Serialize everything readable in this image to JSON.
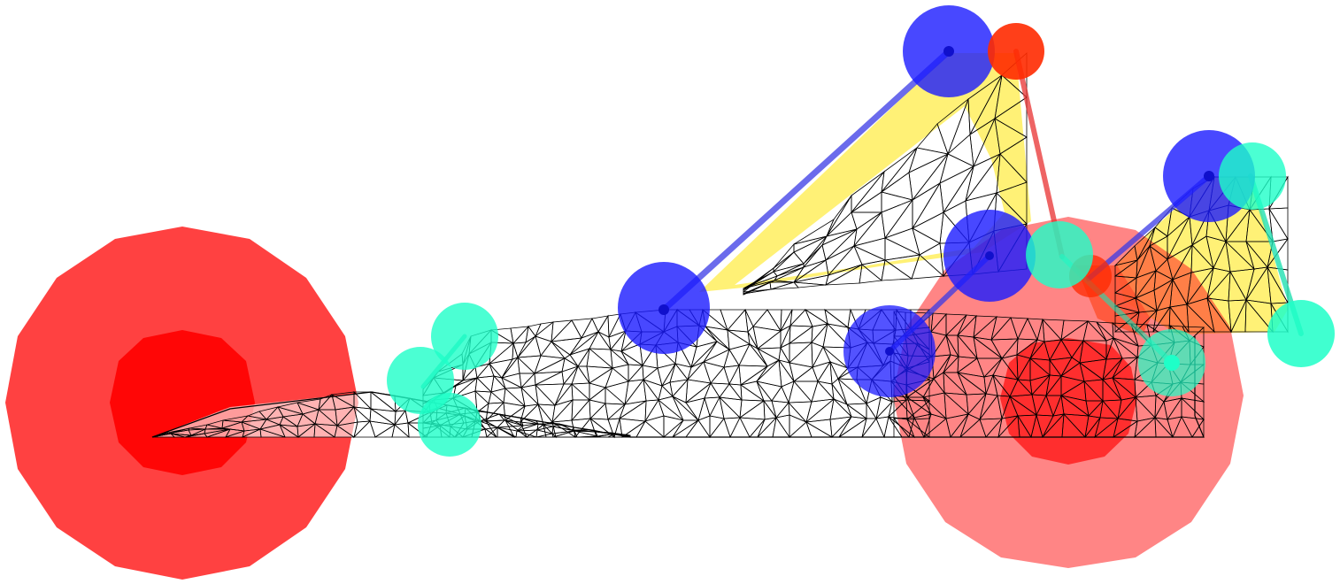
{
  "scene": {
    "background": "#ffffff",
    "mesh_color": "#000000",
    "colors": {
      "wheel": "#ff2020",
      "hub": "#ff0000",
      "joint_blue": "#1a1aff",
      "joint_cyan": "#1effc8",
      "joint_red": "#ff2a00",
      "member_blue": "#3a3ae6",
      "member_red": "#e83030",
      "member_cyan": "#20e0b0",
      "gusset": "#fff176"
    }
  }
}
